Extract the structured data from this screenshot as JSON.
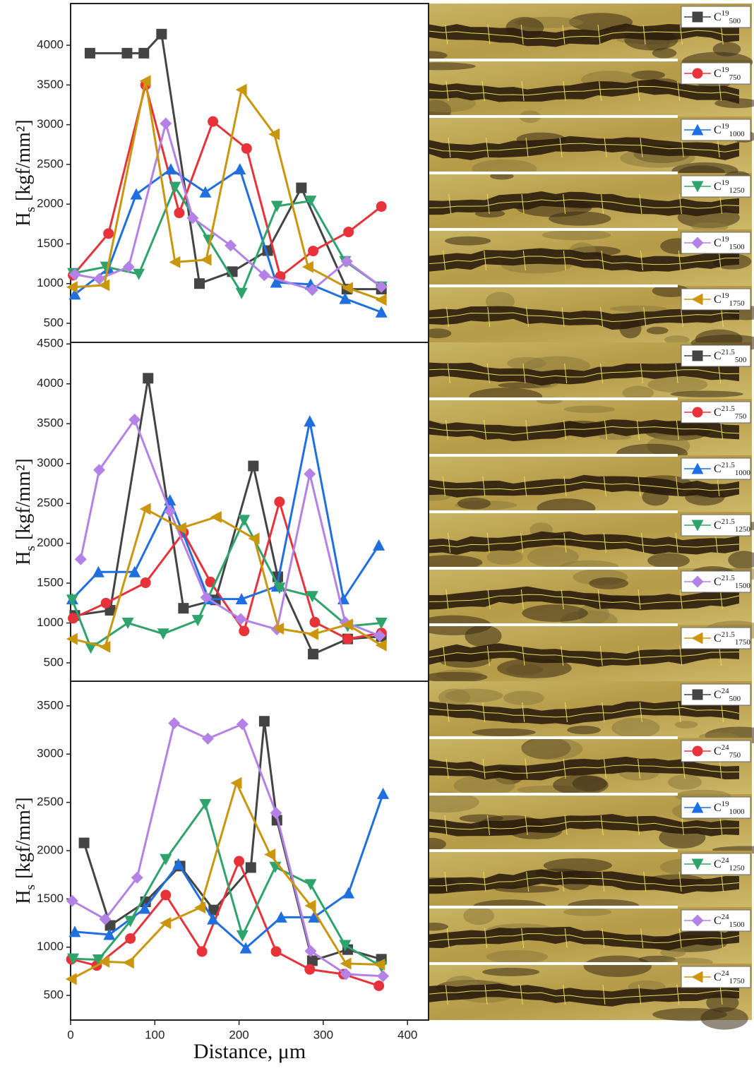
{
  "chart_data": [
    {
      "type": "line",
      "ylabel": {
        "text": "H",
        "sub": "s",
        "unit": "[kgf/mm²]"
      },
      "xlim": [
        0,
        425
      ],
      "ylim": [
        260,
        4525
      ],
      "yticks": [
        500,
        1000,
        1500,
        2000,
        2500,
        3000,
        3500,
        4000
      ],
      "series": [
        {
          "name": "C",
          "sup": "19",
          "sub": "500",
          "color": "#444444",
          "marker": "square",
          "x": [
            23,
            67,
            87,
            108,
            153,
            192,
            234,
            274,
            328,
            369
          ],
          "values": [
            3900,
            3900,
            3900,
            4140,
            1000,
            1150,
            1415,
            2205,
            930,
            930
          ]
        },
        {
          "name": "C",
          "sup": "19",
          "sub": "750",
          "color": "#e8323a",
          "marker": "circle",
          "x": [
            3,
            45,
            89,
            129,
            169,
            209,
            249,
            288,
            330,
            369
          ],
          "values": [
            1105,
            1630,
            3500,
            1890,
            3040,
            2700,
            1090,
            1410,
            1650,
            1970
          ]
        },
        {
          "name": "C",
          "sup": "19",
          "sub": "1000",
          "color": "#1f6fe0",
          "marker": "triangle-up",
          "x": [
            5,
            45,
            78,
            119,
            160,
            201,
            244,
            285,
            326,
            369
          ],
          "values": [
            865,
            1190,
            2125,
            2440,
            2150,
            2440,
            1015,
            990,
            810,
            640
          ]
        },
        {
          "name": "C",
          "sup": "19",
          "sub": "1250",
          "color": "#2ea36c",
          "marker": "triangle-down",
          "x": [
            3,
            42,
            81,
            124,
            164,
            203,
            245,
            285,
            326,
            369
          ],
          "values": [
            1130,
            1210,
            1120,
            2215,
            1550,
            880,
            1975,
            2040,
            1280,
            960
          ]
        },
        {
          "name": "C",
          "sup": "19",
          "sub": "1500",
          "color": "#b482e6",
          "marker": "diamond",
          "x": [
            5,
            34,
            69,
            113,
            145,
            190,
            230,
            287,
            328,
            369
          ],
          "values": [
            1115,
            1060,
            1210,
            3015,
            1825,
            1480,
            1105,
            920,
            1280,
            960
          ]
        },
        {
          "name": "C",
          "sup": "19",
          "sub": "1750",
          "color": "#c9960c",
          "marker": "triangle-left",
          "x": [
            2,
            40,
            89,
            124,
            161,
            203,
            242,
            282,
            329,
            369
          ],
          "values": [
            955,
            980,
            3550,
            1270,
            1300,
            3440,
            2880,
            1210,
            945,
            795
          ]
        }
      ]
    },
    {
      "type": "line",
      "ylabel": {
        "text": "H",
        "sub": "s",
        "unit": "[kgf/mm²]"
      },
      "xlim": [
        0,
        425
      ],
      "ylim": [
        270,
        4520
      ],
      "yticks": [
        500,
        1000,
        1500,
        2000,
        2500,
        3000,
        3500,
        4000,
        4500
      ],
      "series": [
        {
          "name": "C",
          "sup": "21.5",
          "sub": "500",
          "color": "#444444",
          "marker": "square",
          "x": [
            5,
            47,
            92,
            134,
            172,
            217,
            246,
            288,
            329,
            369
          ],
          "values": [
            1095,
            1160,
            4070,
            1185,
            1290,
            2970,
            1580,
            610,
            800,
            830
          ]
        },
        {
          "name": "C",
          "sup": "21.5",
          "sub": "750",
          "color": "#e8323a",
          "marker": "circle",
          "x": [
            3,
            42,
            89,
            134,
            166,
            206,
            248,
            290,
            329,
            369
          ],
          "values": [
            1060,
            1250,
            1505,
            2135,
            1515,
            900,
            2520,
            1010,
            800,
            875
          ]
        },
        {
          "name": "C",
          "sup": "21.5",
          "sub": "1000",
          "color": "#1f6fe0",
          "marker": "triangle-up",
          "x": [
            2,
            33,
            76,
            118,
            164,
            203,
            245,
            284,
            324,
            366
          ],
          "values": [
            1300,
            1640,
            1640,
            2540,
            1300,
            1300,
            1460,
            3530,
            1300,
            1975
          ]
        },
        {
          "name": "C",
          "sup": "21.5",
          "sub": "1250",
          "color": "#2ea36c",
          "marker": "triangle-down",
          "x": [
            2,
            24,
            68,
            110,
            151,
            206,
            248,
            287,
            329,
            369
          ],
          "values": [
            1290,
            690,
            1000,
            865,
            1035,
            2290,
            1440,
            1335,
            960,
            1000
          ]
        },
        {
          "name": "C",
          "sup": "21.5",
          "sub": "1500",
          "color": "#b482e6",
          "marker": "diamond",
          "x": [
            12,
            34,
            76,
            118,
            161,
            202,
            245,
            284,
            326,
            367
          ],
          "values": [
            1800,
            2920,
            3550,
            2400,
            1320,
            1050,
            920,
            2870,
            1010,
            840
          ]
        },
        {
          "name": "C",
          "sup": "21.5",
          "sub": "1750",
          "color": "#c9960c",
          "marker": "triangle-left",
          "x": [
            2,
            41,
            89,
            131,
            173,
            218,
            247,
            288,
            329,
            369
          ],
          "values": [
            800,
            700,
            2430,
            2190,
            2330,
            2060,
            930,
            860,
            980,
            720
          ]
        }
      ]
    },
    {
      "type": "line",
      "ylabel": {
        "text": "H",
        "sub": "s",
        "unit": "[kgf/mm²]"
      },
      "xlabel": "Distance, μm",
      "xlim": [
        0,
        425
      ],
      "xticks": [
        0,
        100,
        200,
        300,
        400
      ],
      "ylim": [
        245,
        3755
      ],
      "yticks": [
        500,
        1000,
        1500,
        2000,
        2500,
        3000,
        3500
      ],
      "series": [
        {
          "name": "C",
          "sup": "24",
          "sub": "500",
          "color": "#444444",
          "marker": "square",
          "x": [
            16,
            47,
            89,
            130,
            170,
            214,
            230,
            245,
            287,
            329,
            369
          ],
          "values": [
            2080,
            1225,
            1470,
            1840,
            1385,
            1825,
            3340,
            2315,
            860,
            975,
            875
          ]
        },
        {
          "name": "C",
          "sup": "24",
          "sub": "750",
          "color": "#e8323a",
          "marker": "circle",
          "x": [
            1,
            31,
            71,
            113,
            156,
            200,
            244,
            284,
            324,
            366
          ],
          "values": [
            875,
            810,
            1090,
            1540,
            955,
            1890,
            955,
            770,
            720,
            600
          ]
        },
        {
          "name": "C",
          "sup": "19",
          "sub": "1000",
          "color": "#1f6fe0",
          "marker": "triangle-up",
          "x": [
            5,
            46,
            88,
            128,
            169,
            208,
            250,
            289,
            330,
            371
          ],
          "values": [
            1160,
            1130,
            1400,
            1860,
            1290,
            990,
            1310,
            1310,
            1560,
            2590
          ]
        },
        {
          "name": "C",
          "sup": "24",
          "sub": "1250",
          "color": "#2ea36c",
          "marker": "triangle-down",
          "x": [
            3,
            33,
            71,
            113,
            160,
            204,
            243,
            285,
            326,
            369
          ],
          "values": [
            880,
            870,
            1270,
            1910,
            2480,
            1120,
            1830,
            1650,
            1020,
            800
          ]
        },
        {
          "name": "C",
          "sup": "24",
          "sub": "1500",
          "color": "#b482e6",
          "marker": "diamond",
          "x": [
            2,
            41,
            79,
            123,
            163,
            204,
            244,
            285,
            327,
            371
          ],
          "values": [
            1480,
            1290,
            1720,
            3320,
            3160,
            3310,
            2390,
            960,
            720,
            700
          ]
        },
        {
          "name": "C",
          "sup": "24",
          "sub": "1750",
          "color": "#c9960c",
          "marker": "triangle-left",
          "x": [
            1,
            40,
            69,
            113,
            154,
            197,
            237,
            285,
            327,
            367
          ],
          "values": [
            670,
            850,
            840,
            1250,
            1410,
            2700,
            1960,
            1430,
            830,
            820
          ]
        }
      ]
    }
  ]
}
